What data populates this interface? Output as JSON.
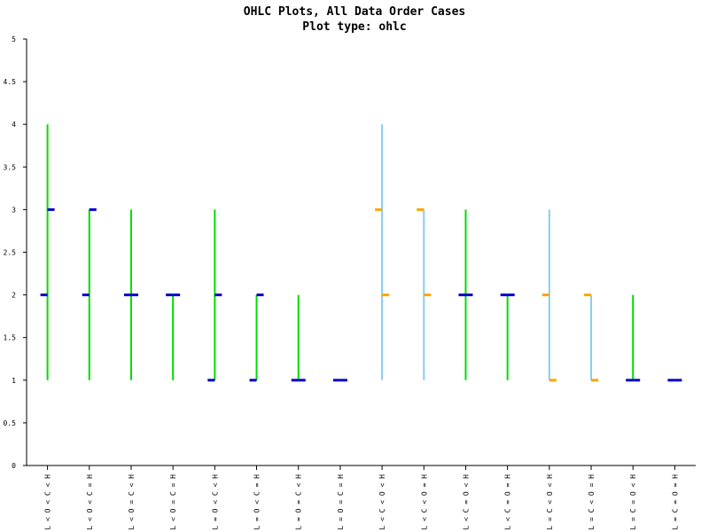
{
  "chart_data": {
    "type": "ohlc",
    "title": "OHLC Plots, All Data Order Cases",
    "subtitle": "Plot type: ohlc",
    "xlabel": "",
    "ylabel": "",
    "ylim": [
      0,
      5
    ],
    "yticks": [
      "0",
      "0.5",
      "1",
      "1.5",
      "2",
      "2.5",
      "3",
      "3.5",
      "4",
      "4.5",
      "5"
    ],
    "ytick_values": [
      0,
      0.5,
      1,
      1.5,
      2,
      2.5,
      3,
      3.5,
      4,
      4.5,
      5
    ],
    "grid": false,
    "colors": {
      "up_wick": "#00dd00",
      "down_wick": "#87ceeb",
      "up_tick": "#0000cc",
      "down_tick": "#ffa500",
      "axis": "#000000"
    },
    "categories": [
      "L < O < C < H",
      "L < O < C = H",
      "L < O = C < H",
      "L < O = C = H",
      "L = O < C < H",
      "L = O < C = H",
      "L = O = C < H",
      "L = O = C = H",
      "L < C < O < H",
      "L < C < O = H",
      "L < C = O < H",
      "L < C = O = H",
      "L = C < O < H",
      "L = C < O = H",
      "L = C = O < H",
      "L = C = O = H"
    ],
    "series": [
      {
        "open": [
          2,
          2,
          2,
          2,
          1,
          1,
          1,
          1,
          3,
          3,
          2,
          2,
          2,
          2,
          1,
          1
        ],
        "high": [
          4,
          3,
          3,
          2,
          3,
          2,
          2,
          1,
          4,
          3,
          3,
          2,
          3,
          2,
          2,
          1
        ],
        "low": [
          1,
          1,
          1,
          1,
          1,
          1,
          1,
          1,
          1,
          1,
          1,
          1,
          1,
          1,
          1,
          1
        ],
        "close": [
          3,
          3,
          2,
          2,
          2,
          2,
          1,
          1,
          2,
          2,
          2,
          2,
          1,
          1,
          1,
          1
        ]
      }
    ]
  }
}
